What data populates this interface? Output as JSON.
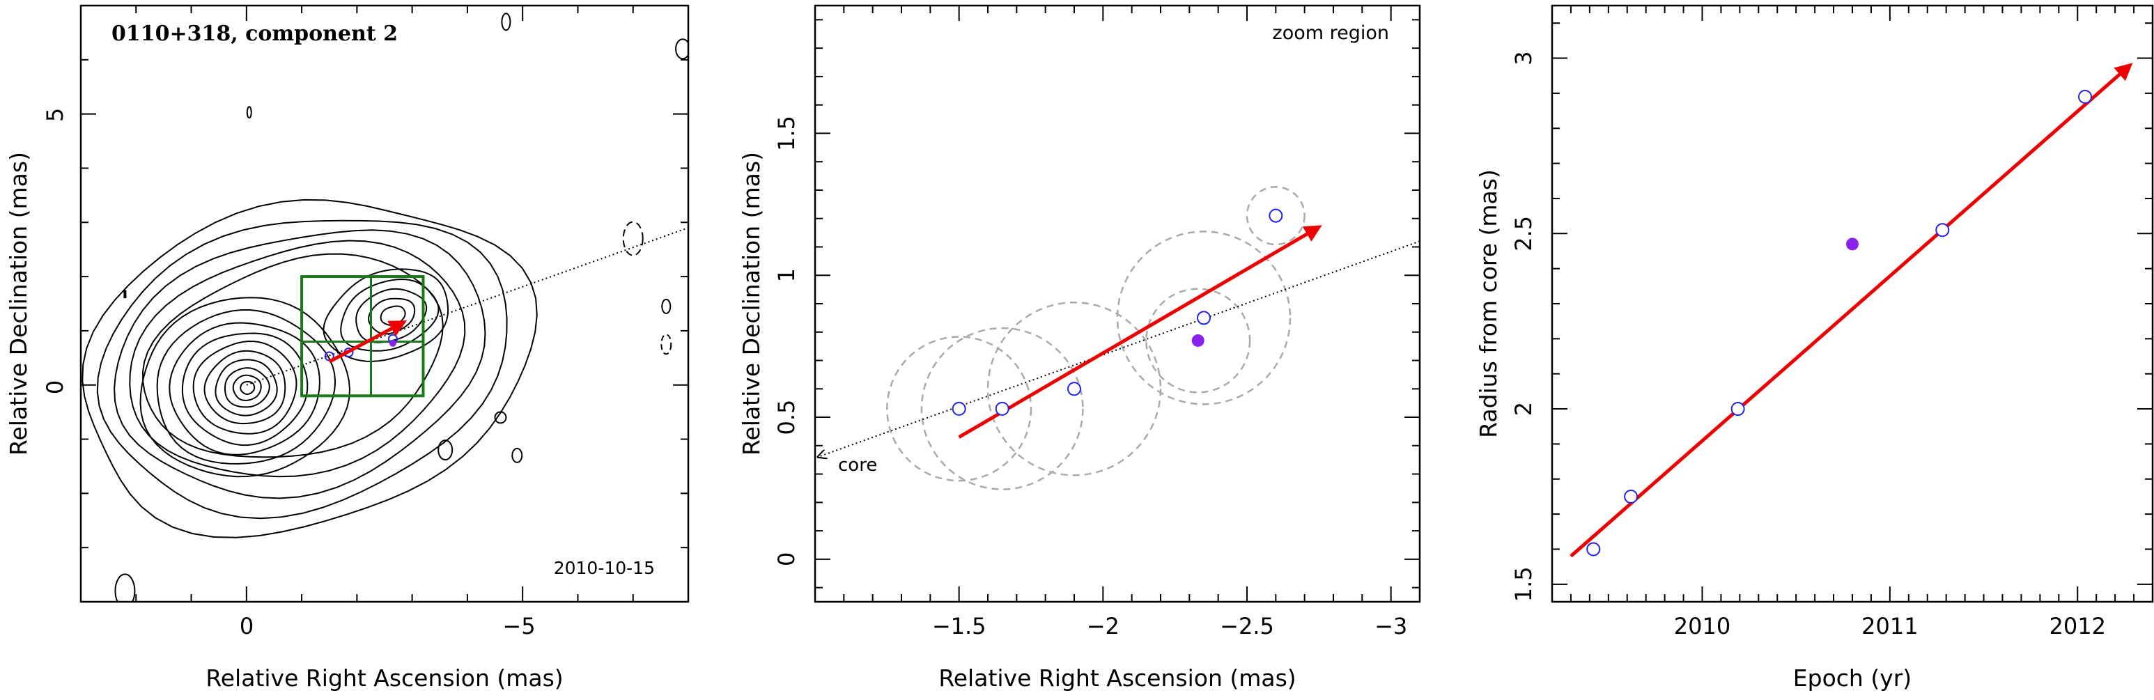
{
  "colors": {
    "velocity_arrow": "#ee0000",
    "epoch_marker": "#2222ee",
    "highlight_point": "#8a22ee",
    "zoom_box": "#1a7a1a",
    "error_circle": "#aaaaaa",
    "contour": "#000000"
  },
  "panels": {
    "left": {
      "title": "0110+318, component 2",
      "date_label": "2010-10-15",
      "xlabel": "Relative Right Ascension (mas)",
      "ylabel": "Relative Declination (mas)",
      "xticks": [
        "0",
        "−5"
      ],
      "yticks": [
        "0",
        "5"
      ]
    },
    "middle": {
      "region_label": "zoom region",
      "core_label": "core",
      "xlabel": "Relative Right Ascension (mas)",
      "ylabel": "Relative Declination (mas)",
      "xticks": [
        "−1.5",
        "−2",
        "−2.5",
        "−3"
      ],
      "yticks": [
        "0",
        "0.5",
        "1",
        "1.5"
      ]
    },
    "right": {
      "xlabel": "Epoch (yr)",
      "ylabel": "Radius from core (mas)",
      "xticks": [
        "2010",
        "2011",
        "2012"
      ],
      "yticks": [
        "1.5",
        "2",
        "2.5",
        "3"
      ]
    }
  },
  "chart_data": [
    {
      "type": "contour",
      "panel": "left",
      "title": "0110+318, component 2",
      "xlabel": "Relative Right Ascension (mas)",
      "ylabel": "Relative Declination (mas)",
      "xlim": [
        3,
        -8
      ],
      "ylim": [
        -4,
        7
      ],
      "core_position": [
        0,
        0
      ],
      "component_positions": [
        [
          -1.5,
          0.53
        ],
        [
          -1.85,
          0.6
        ],
        [
          -2.65,
          0.85
        ]
      ],
      "highlight_position": [
        -2.65,
        0.77
      ],
      "velocity_arrow": {
        "from": [
          -1.5,
          0.43
        ],
        "to": [
          -2.85,
          1.16
        ]
      },
      "jet_axis_end": [
        -8,
        2.9
      ],
      "zoom_region": {
        "x": [
          -1,
          -3.2
        ],
        "y": [
          -0.2,
          2
        ]
      }
    },
    {
      "type": "scatter",
      "panel": "middle",
      "xlabel": "Relative Right Ascension (mas)",
      "ylabel": "Relative Declination (mas)",
      "xlim": [
        -1,
        -3.1
      ],
      "ylim": [
        -0.15,
        1.95
      ],
      "series": [
        {
          "x": [
            -1.5,
            -1.65,
            -1.9,
            -2.35,
            -2.6
          ],
          "y": [
            0.53,
            0.53,
            0.6,
            0.85,
            1.21
          ],
          "r": [
            0.25,
            0.28,
            0.3,
            0.3,
            0.1
          ]
        }
      ],
      "highlight": {
        "x": -2.33,
        "y": 0.77
      },
      "highlight_radius": 0.18,
      "velocity_arrow": {
        "from": [
          -1.5,
          0.43
        ],
        "to": [
          -2.75,
          1.17
        ]
      },
      "jet_axis": {
        "from": [
          -1,
          0.36
        ],
        "to": [
          -3.1,
          1.12
        ]
      }
    },
    {
      "type": "scatter",
      "panel": "right",
      "xlabel": "Epoch (yr)",
      "ylabel": "Radius from core (mas)",
      "xlim": [
        2009.2,
        2012.4
      ],
      "ylim": [
        1.45,
        3.15
      ],
      "series": [
        {
          "x": [
            2009.42,
            2009.62,
            2010.19,
            2011.28,
            2012.04
          ],
          "y": [
            1.6,
            1.75,
            2.0,
            2.51,
            2.89
          ]
        }
      ],
      "highlight": {
        "x": 2010.8,
        "y": 2.47
      },
      "fit_line": {
        "from": [
          2009.3,
          1.58
        ],
        "to": [
          2012.28,
          2.98
        ]
      }
    }
  ]
}
